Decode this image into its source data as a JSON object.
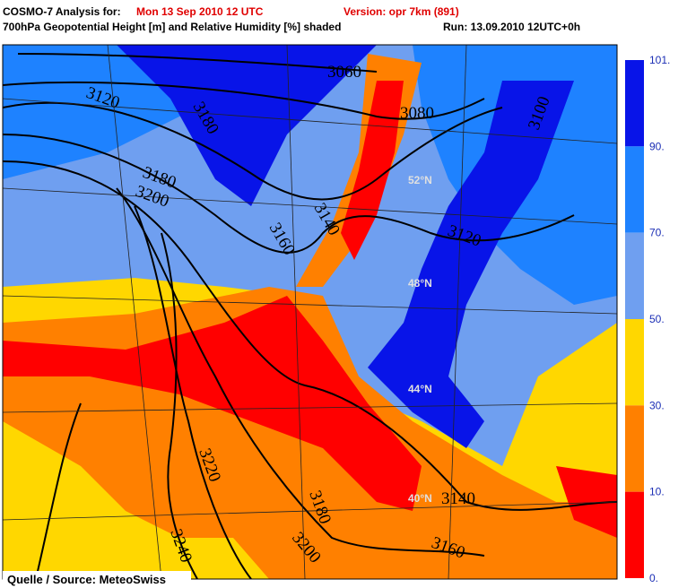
{
  "header": {
    "title_label": "COSMO-7 Analysis for:",
    "title_date": "Mon 13 Sep 2010 12 UTC",
    "version": "Version: opr 7km (891)",
    "subtitle": "700hPa Geopotential Height [m] and Relative Humidity [%] shaded",
    "run": "Run: 13.09.2010 12UTC+0h"
  },
  "map": {
    "contour_labels": [
      "3060",
      "3080",
      "3100",
      "3120",
      "3180",
      "3180",
      "3200",
      "3140",
      "3160",
      "3120",
      "3220",
      "3240",
      "3180",
      "3200",
      "3140",
      "3160"
    ],
    "latitude_labels": [
      "52°N",
      "48°N",
      "44°N",
      "40°N"
    ],
    "source": "Quelle / Source: MeteoSwiss"
  },
  "colorbar": {
    "labels": [
      "101.",
      "90.",
      "70.",
      "50.",
      "30.",
      "10.",
      "0."
    ],
    "colors": [
      "#0814e8",
      "#1e82ff",
      "#6f9ff0",
      "#ffd700",
      "#ff8000",
      "#ff0000"
    ]
  }
}
